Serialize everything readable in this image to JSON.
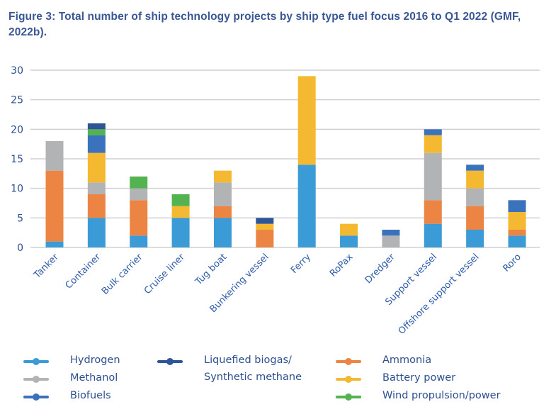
{
  "figure": {
    "title": "Figure 3: Total number of ship technology projects by ship type fuel focus 2016 to Q1 2022 (GMF, 2022b)."
  },
  "chart_data": {
    "type": "bar",
    "stacked": true,
    "title": "Figure 3: Total number of ship technology projects by ship type fuel focus 2016 to Q1 2022 (GMF, 2022b).",
    "xlabel": "",
    "ylabel": "",
    "ylim": [
      0,
      30
    ],
    "yticks": [
      0,
      5,
      10,
      15,
      20,
      25,
      30
    ],
    "grid": true,
    "legend_position": "bottom",
    "categories": [
      "Tanker",
      "Container",
      "Bulk carrier",
      "Cruise liner",
      "Tug boat",
      "Bunkering vessel",
      "Ferry",
      "RoPax",
      "Dredger",
      "Support vessel",
      "Offshore support vessel",
      "Roro"
    ],
    "series": [
      {
        "name": "Hydrogen",
        "color": "#3a9bd6",
        "values": [
          1,
          5,
          2,
          5,
          5,
          0,
          14,
          2,
          0,
          4,
          3,
          2
        ]
      },
      {
        "name": "Ammonia",
        "color": "#ec8444",
        "values": [
          12,
          4,
          6,
          0,
          2,
          3,
          0,
          0,
          0,
          4,
          4,
          1
        ]
      },
      {
        "name": "Methanol",
        "color": "#b2b3b5",
        "values": [
          5,
          2,
          2,
          0,
          4,
          0,
          0,
          0,
          2,
          8,
          3,
          0
        ]
      },
      {
        "name": "Battery power",
        "color": "#f4b930",
        "values": [
          0,
          5,
          0,
          2,
          2,
          1,
          15,
          2,
          0,
          3,
          3,
          3
        ]
      },
      {
        "name": "Biofuels",
        "color": "#3a72bb",
        "values": [
          0,
          3,
          0,
          0,
          0,
          0,
          0,
          0,
          1,
          1,
          1,
          2
        ]
      },
      {
        "name": "Wind propulsion/power",
        "color": "#53b350",
        "values": [
          0,
          1,
          2,
          2,
          0,
          0,
          0,
          0,
          0,
          0,
          0,
          0
        ]
      },
      {
        "name": "Liquefied biogas/ Synthetic methane",
        "color": "#2d5598",
        "values": [
          0,
          1,
          0,
          0,
          0,
          1,
          0,
          0,
          0,
          0,
          0,
          0
        ]
      }
    ]
  },
  "legend": [
    {
      "label": "Hydrogen",
      "color": "#3a9bd6"
    },
    {
      "label": "Methanol",
      "color": "#b2b3b5"
    },
    {
      "label": "Biofuels",
      "color": "#3a72bb"
    },
    {
      "label_line1": "Liquefied biogas/",
      "label_line2": "Synthetic methane",
      "color": "#2d5598"
    },
    {
      "label": "Ammonia",
      "color": "#ec8444"
    },
    {
      "label": "Battery power",
      "color": "#f4b930"
    },
    {
      "label": "Wind propulsion/power",
      "color": "#53b350"
    }
  ]
}
